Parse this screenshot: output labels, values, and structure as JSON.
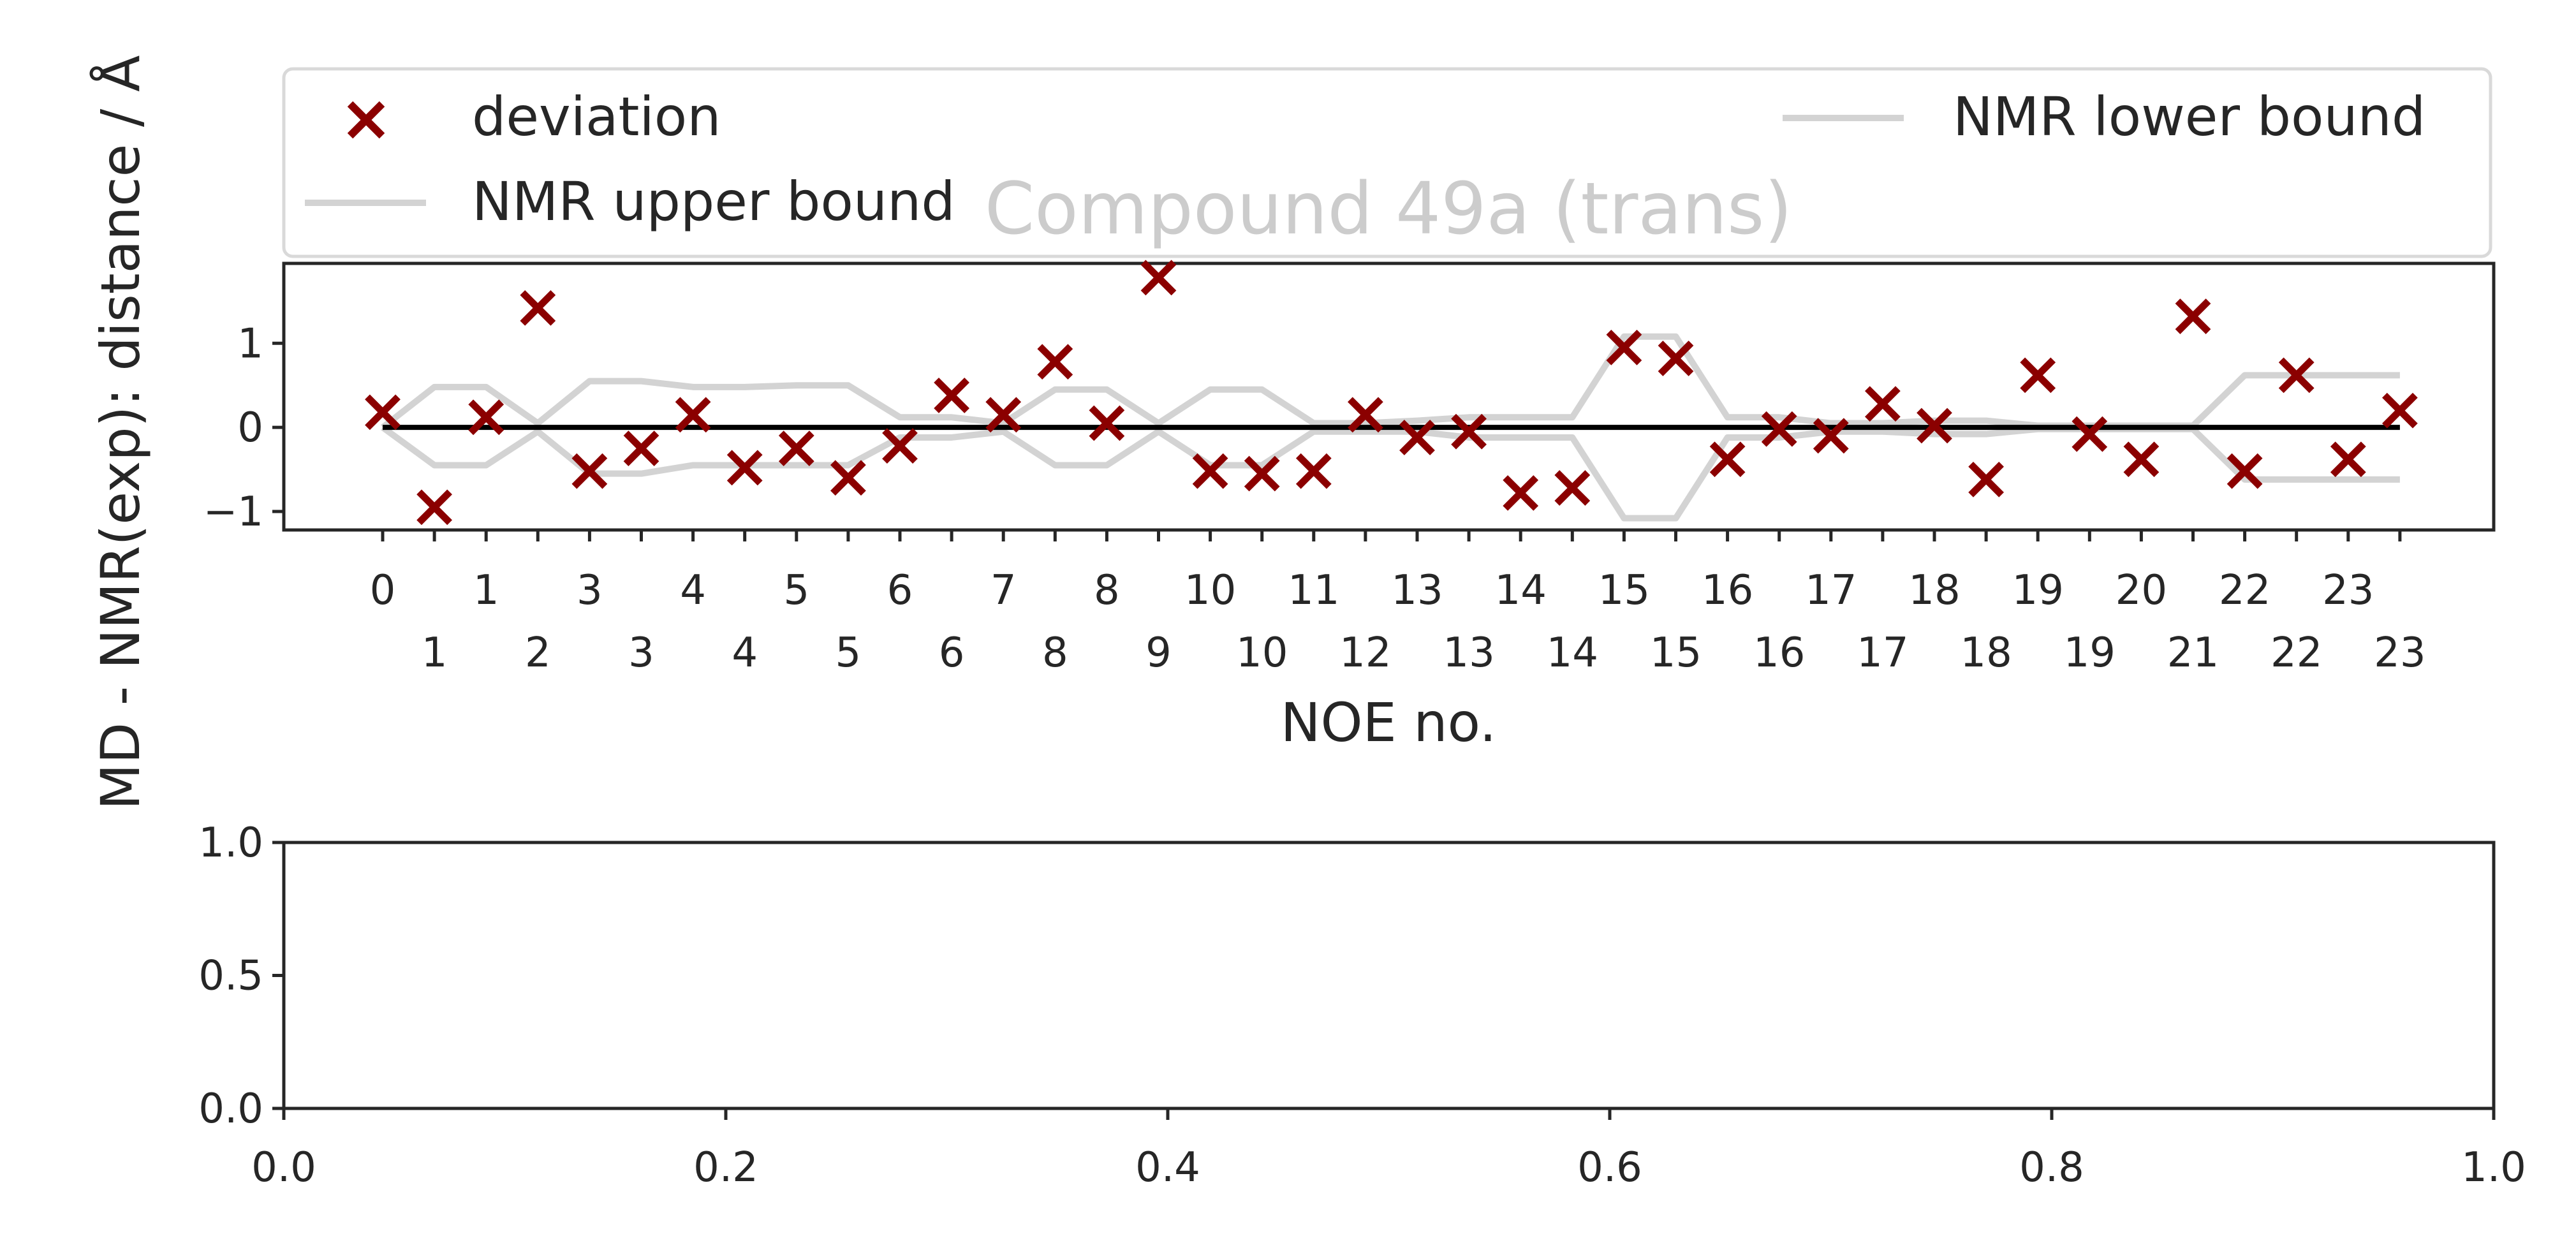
{
  "colors": {
    "deviation": "#8b0000",
    "bounds": "#d3d3d3",
    "zero_line": "#000000",
    "axis": "#262626",
    "title": "#cccccc"
  },
  "chart_data": [
    {
      "type": "scatter",
      "title": "Compound 49a (trans)",
      "xlabel": "NOE no.",
      "ylabel": "MD - NMR(exp): distance / Å",
      "ylim": [
        -1.22,
        1.95
      ],
      "yticks": [
        "−1",
        "0",
        "1"
      ],
      "ytick_values": [
        -1,
        0,
        1
      ],
      "x": [
        0,
        1,
        2,
        3,
        4,
        5,
        6,
        7,
        8,
        9,
        10,
        11,
        12,
        13,
        14,
        15,
        16,
        17,
        18,
        19,
        20,
        21,
        22,
        23,
        24,
        25,
        26,
        27,
        28,
        29,
        30,
        31,
        32,
        33,
        34,
        35,
        36,
        37,
        38,
        39
      ],
      "xtick_labels_top": [
        "0",
        "1",
        "3",
        "4",
        "5",
        "6",
        "7",
        "8",
        "10",
        "11",
        "13",
        "14",
        "15",
        "16",
        "17",
        "18",
        "19",
        "20",
        "22",
        "23"
      ],
      "xtick_labels_bottom": [
        "1",
        "2",
        "3",
        "4",
        "5",
        "6",
        "8",
        "9",
        "10",
        "12",
        "13",
        "14",
        "15",
        "16",
        "17",
        "18",
        "19",
        "21",
        "22",
        "23"
      ],
      "legend": {
        "placement": "upper, above axes",
        "entries": [
          "deviation",
          "NMR lower bound",
          "NMR upper bound"
        ]
      },
      "series": [
        {
          "name": "deviation",
          "marker": "x",
          "values": [
            0.18,
            -0.95,
            0.12,
            1.42,
            -0.52,
            -0.25,
            0.15,
            -0.48,
            -0.25,
            -0.6,
            -0.22,
            0.38,
            0.15,
            0.78,
            0.05,
            1.78,
            -0.52,
            -0.55,
            -0.52,
            0.15,
            -0.12,
            -0.05,
            -0.78,
            -0.72,
            0.95,
            0.82,
            -0.38,
            -0.02,
            -0.1,
            0.28,
            0.02,
            -0.62,
            0.62,
            -0.08,
            -0.38,
            1.32,
            -0.52,
            0.62,
            -0.38,
            0.2
          ]
        },
        {
          "name": "NMR lower bound",
          "values": [
            0,
            -0.45,
            -0.45,
            -0.05,
            -0.55,
            -0.55,
            -0.45,
            -0.45,
            -0.45,
            -0.45,
            -0.12,
            -0.12,
            -0.05,
            -0.45,
            -0.45,
            -0.05,
            -0.45,
            -0.45,
            -0.05,
            -0.05,
            -0.05,
            -0.12,
            -0.12,
            -0.12,
            -1.08,
            -1.08,
            -0.12,
            -0.12,
            -0.05,
            -0.05,
            -0.08,
            -0.08,
            -0.02,
            -0.02,
            -0.02,
            -0.02,
            -0.62,
            -0.62,
            -0.62,
            -0.62
          ]
        },
        {
          "name": "NMR upper bound",
          "values": [
            0,
            0.48,
            0.48,
            0.05,
            0.55,
            0.55,
            0.48,
            0.48,
            0.5,
            0.5,
            0.12,
            0.12,
            0.05,
            0.45,
            0.45,
            0.05,
            0.45,
            0.45,
            0.05,
            0.05,
            0.08,
            0.12,
            0.12,
            0.12,
            1.08,
            1.08,
            0.12,
            0.12,
            0.05,
            0.05,
            0.08,
            0.08,
            0.02,
            0.02,
            0.02,
            0.02,
            0.62,
            0.62,
            0.62,
            0.62
          ]
        }
      ]
    },
    {
      "type": "scatter",
      "title": "",
      "xlim": [
        0.0,
        1.0
      ],
      "ylim": [
        0.0,
        1.0
      ],
      "xticks": [
        "0.0",
        "0.2",
        "0.4",
        "0.6",
        "0.8",
        "1.0"
      ],
      "xtick_values": [
        0.0,
        0.2,
        0.4,
        0.6,
        0.8,
        1.0
      ],
      "yticks": [
        "0.0",
        "0.5",
        "1.0"
      ],
      "ytick_values": [
        0.0,
        0.5,
        1.0
      ],
      "series": []
    }
  ]
}
